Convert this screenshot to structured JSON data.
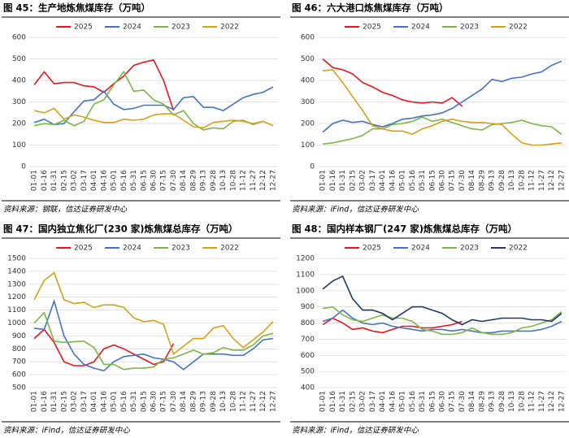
{
  "chart_data": [
    {
      "type": "line",
      "title": "图 45：生产地炼焦煤库存（万吨）",
      "source": "资料来源：钢联，信达证券研发中心",
      "categories": [
        "01-01",
        "01-16",
        "01-31",
        "02-15",
        "03-02",
        "03-17",
        "04-01",
        "04-16",
        "05-01",
        "05-16",
        "05-31",
        "06-15",
        "06-30",
        "07-15",
        "07-30",
        "08-14",
        "08-29",
        "09-13",
        "09-28",
        "10-13",
        "10-28",
        "11-12",
        "11-27",
        "12-12",
        "12-27"
      ],
      "ylim": [
        0,
        600
      ],
      "yticks": [
        0,
        100,
        200,
        300,
        400,
        500,
        600
      ],
      "grid": true,
      "legend": "top",
      "series": [
        {
          "name": "2025",
          "color": "#e8141c",
          "values": [
            380,
            440,
            385,
            390,
            390,
            375,
            370,
            345,
            385,
            420,
            470,
            485,
            495,
            400,
            260,
            null,
            null,
            null,
            null,
            null,
            null,
            null,
            null,
            null,
            null
          ]
        },
        {
          "name": "2024",
          "color": "#4472c4",
          "values": [
            205,
            220,
            195,
            200,
            255,
            305,
            310,
            350,
            290,
            265,
            270,
            285,
            285,
            285,
            265,
            320,
            325,
            275,
            275,
            260,
            290,
            320,
            335,
            345,
            370
          ]
        },
        {
          "name": "2023",
          "color": "#7ab648",
          "values": [
            190,
            200,
            195,
            215,
            190,
            210,
            290,
            310,
            380,
            440,
            350,
            355,
            310,
            290,
            240,
            260,
            200,
            170,
            180,
            175,
            210,
            215,
            195,
            210,
            190
          ]
        },
        {
          "name": "2022",
          "color": "#d4a017",
          "values": [
            260,
            250,
            270,
            220,
            240,
            230,
            215,
            205,
            205,
            220,
            215,
            220,
            240,
            245,
            245,
            215,
            185,
            180,
            205,
            210,
            215,
            210,
            200,
            210,
            190
          ]
        }
      ]
    },
    {
      "type": "line",
      "title": "图 46：六大港口炼焦煤库存（万吨）",
      "source": "资料来源：iFind，信达证券研发中心",
      "categories": [
        "01-01",
        "01-16",
        "01-31",
        "02-15",
        "03-02",
        "03-17",
        "04-01",
        "04-16",
        "05-01",
        "05-16",
        "05-31",
        "06-15",
        "06-30",
        "07-15",
        "07-30",
        "08-14",
        "08-29",
        "09-13",
        "09-28",
        "10-13",
        "10-28",
        "11-12",
        "11-27",
        "12-12",
        "12-27"
      ],
      "ylim": [
        0,
        600
      ],
      "yticks": [
        0,
        100,
        200,
        300,
        400,
        500,
        600
      ],
      "grid": true,
      "legend": "top",
      "series": [
        {
          "name": "2025",
          "color": "#e8141c",
          "values": [
            500,
            460,
            450,
            430,
            390,
            370,
            345,
            330,
            310,
            300,
            295,
            300,
            295,
            320,
            280,
            null,
            null,
            null,
            null,
            null,
            null,
            null,
            null,
            null,
            null
          ]
        },
        {
          "name": "2024",
          "color": "#4472c4",
          "values": [
            160,
            200,
            215,
            205,
            210,
            195,
            185,
            200,
            220,
            225,
            235,
            240,
            250,
            270,
            300,
            330,
            360,
            405,
            395,
            410,
            415,
            430,
            440,
            470,
            490
          ]
        },
        {
          "name": "2023",
          "color": "#7ab648",
          "values": [
            105,
            110,
            120,
            130,
            145,
            175,
            175,
            195,
            200,
            210,
            230,
            210,
            220,
            205,
            190,
            175,
            170,
            195,
            200,
            205,
            215,
            200,
            190,
            185,
            150
          ]
        },
        {
          "name": "2022",
          "color": "#d4a017",
          "values": [
            445,
            450,
            390,
            325,
            260,
            190,
            175,
            165,
            165,
            150,
            175,
            190,
            210,
            220,
            210,
            205,
            205,
            200,
            195,
            150,
            110,
            100,
            100,
            105,
            110
          ]
        }
      ]
    },
    {
      "type": "line",
      "title": "图 47：国内独立焦化厂(230 家)炼焦煤总库存（万吨）",
      "source": "资料来源：iFind，信达证券研发中心",
      "categories": [
        "01-01",
        "01-16",
        "01-31",
        "02-15",
        "03-02",
        "03-17",
        "04-01",
        "04-16",
        "05-01",
        "05-16",
        "05-31",
        "06-15",
        "06-30",
        "07-15",
        "07-30",
        "08-14",
        "08-29",
        "09-13",
        "09-28",
        "10-13",
        "10-28",
        "11-12",
        "11-27",
        "12-12",
        "12-27"
      ],
      "ylim": [
        500,
        1500
      ],
      "yticks": [
        500,
        600,
        700,
        800,
        900,
        1000,
        1100,
        1200,
        1300,
        1400,
        1500
      ],
      "grid": true,
      "legend": "top",
      "series": [
        {
          "name": "2025",
          "color": "#e8141c",
          "values": [
            880,
            950,
            850,
            700,
            670,
            670,
            700,
            800,
            830,
            800,
            760,
            720,
            680,
            700,
            840,
            null,
            null,
            null,
            null,
            null,
            null,
            null,
            null,
            null,
            null
          ]
        },
        {
          "name": "2024",
          "color": "#4472c4",
          "values": [
            960,
            950,
            1170,
            900,
            760,
            680,
            650,
            630,
            700,
            740,
            750,
            760,
            730,
            720,
            700,
            640,
            700,
            760,
            760,
            760,
            750,
            750,
            800,
            870,
            880
          ]
        },
        {
          "name": "2023",
          "color": "#7ab648",
          "values": [
            1000,
            1080,
            860,
            850,
            855,
            860,
            810,
            680,
            680,
            640,
            650,
            650,
            660,
            720,
            730,
            760,
            790,
            760,
            770,
            810,
            790,
            790,
            830,
            900,
            920
          ]
        },
        {
          "name": "2022",
          "color": "#d4a017",
          "values": [
            1180,
            1330,
            1390,
            1180,
            1150,
            1160,
            1120,
            1140,
            1140,
            1120,
            1040,
            1010,
            1020,
            990,
            760,
            820,
            880,
            880,
            960,
            980,
            880,
            810,
            870,
            930,
            1010
          ]
        }
      ]
    },
    {
      "type": "line",
      "title": "图 48：国内样本钢厂(247 家)炼焦煤总库存（万吨）",
      "source": "资料来源：iFind，信达证券研发中心",
      "categories": [
        "01-01",
        "01-16",
        "01-31",
        "02-15",
        "03-02",
        "03-17",
        "04-01",
        "04-16",
        "05-01",
        "05-16",
        "05-31",
        "06-15",
        "06-30",
        "07-15",
        "07-30",
        "08-14",
        "08-29",
        "09-13",
        "09-28",
        "10-13",
        "10-28",
        "11-12",
        "11-27",
        "12-12",
        "12-27"
      ],
      "ylim": [
        400,
        1200
      ],
      "yticks": [
        400,
        500,
        600,
        700,
        800,
        900,
        1000,
        1100,
        1200
      ],
      "grid": true,
      "legend": "top",
      "series": [
        {
          "name": "2025",
          "color": "#e8141c",
          "values": [
            790,
            830,
            800,
            760,
            770,
            750,
            740,
            760,
            780,
            780,
            770,
            770,
            780,
            790,
            810,
            null,
            null,
            null,
            null,
            null,
            null,
            null,
            null,
            null,
            null
          ]
        },
        {
          "name": "2024",
          "color": "#4472c4",
          "values": [
            810,
            830,
            880,
            830,
            800,
            790,
            800,
            780,
            770,
            760,
            750,
            760,
            760,
            750,
            760,
            750,
            740,
            740,
            750,
            750,
            750,
            750,
            760,
            780,
            810
          ]
        },
        {
          "name": "2023",
          "color": "#7ab648",
          "values": [
            890,
            900,
            850,
            820,
            810,
            830,
            850,
            830,
            830,
            810,
            760,
            750,
            730,
            730,
            740,
            770,
            740,
            730,
            730,
            740,
            770,
            780,
            800,
            820,
            870
          ]
        },
        {
          "name": "2022",
          "color": "#203864",
          "values": [
            1010,
            1060,
            1090,
            950,
            880,
            880,
            860,
            820,
            860,
            900,
            900,
            880,
            860,
            820,
            790,
            820,
            810,
            820,
            830,
            830,
            830,
            820,
            820,
            810,
            860
          ]
        }
      ]
    }
  ]
}
